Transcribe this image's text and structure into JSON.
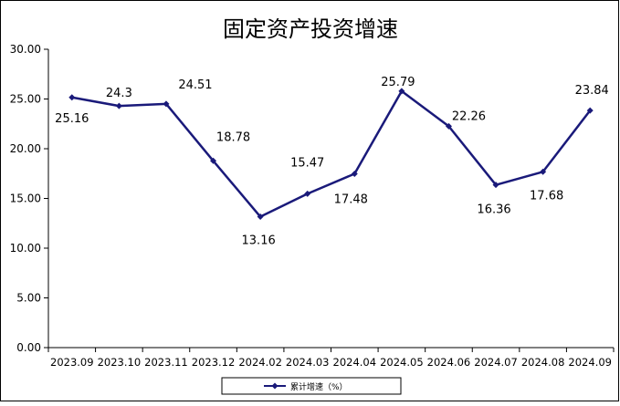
{
  "chart_data": {
    "type": "line",
    "title": "固定资产投资增速",
    "categories": [
      "2023.09",
      "2023.10",
      "2023.11",
      "2023.12",
      "2024.02",
      "2024.03",
      "2024.04",
      "2024.05",
      "2024.06",
      "2024.07",
      "2024.08",
      "2024.09"
    ],
    "series": [
      {
        "name": "累计增速（%）",
        "values": [
          25.16,
          24.3,
          24.51,
          18.78,
          13.16,
          15.47,
          17.48,
          25.79,
          22.26,
          16.36,
          17.68,
          23.84
        ],
        "labels": [
          "25.16",
          "24.3",
          "24.51",
          "18.78",
          "13.16",
          "15.47",
          "17.48",
          "25.79",
          "22.26",
          "16.36",
          "17.68",
          "23.84"
        ]
      }
    ],
    "yticks": [
      "0.00",
      "5.00",
      "10.00",
      "15.00",
      "20.00",
      "25.00",
      "30.00"
    ],
    "ylim": [
      0,
      30
    ],
    "grid": false,
    "legend_position": "bottom",
    "colors": {
      "series": "#1a1a7a"
    }
  }
}
